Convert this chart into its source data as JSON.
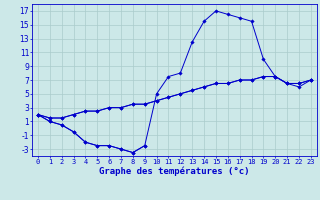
{
  "title": "Graphe des températures (°c)",
  "bg_color": "#cce8e8",
  "grid_color": "#aacccc",
  "line_color": "#0000cc",
  "hours": [
    0,
    1,
    2,
    3,
    4,
    5,
    6,
    7,
    8,
    9,
    10,
    11,
    12,
    13,
    14,
    15,
    16,
    17,
    18,
    19,
    20,
    21,
    22,
    23
  ],
  "line_arc": [
    2,
    1,
    0.5,
    -0.5,
    -2,
    -2.5,
    -2.5,
    -3,
    -3.5,
    -2.5,
    5,
    7.5,
    8,
    12.5,
    15.5,
    17,
    16.5,
    16,
    15.5,
    10,
    7.5,
    6.5,
    6,
    7
  ],
  "line_dip": [
    2,
    1,
    0.5,
    -0.5,
    -2,
    -2.5,
    -2.5,
    -3,
    -3.5,
    -2.5,
    null,
    null,
    null,
    null,
    null,
    null,
    null,
    null,
    null,
    null,
    null,
    null,
    null,
    null
  ],
  "line_flat1": [
    2,
    1.5,
    1.5,
    2,
    2.5,
    2.5,
    3,
    3,
    3.5,
    3.5,
    4,
    4.5,
    5,
    5.5,
    6,
    6.5,
    6.5,
    7,
    7,
    7.5,
    7.5,
    6.5,
    6.5,
    7
  ],
  "line_flat2": [
    2,
    1.5,
    1.5,
    2,
    2.5,
    2.5,
    3,
    3,
    3.5,
    3.5,
    4,
    4.5,
    5,
    5.5,
    6,
    6.5,
    6.5,
    7,
    7,
    7.5,
    7.5,
    6.5,
    6.5,
    7
  ],
  "ylim": [
    -4,
    18
  ],
  "yticks": [
    -3,
    -1,
    1,
    3,
    5,
    7,
    9,
    11,
    13,
    15,
    17
  ],
  "xlim": [
    -0.5,
    23.5
  ],
  "marker": "D",
  "marker_size": 1.8,
  "linewidth": 0.7,
  "xlabel_fontsize": 6.5,
  "tick_fontsize": 5.0
}
